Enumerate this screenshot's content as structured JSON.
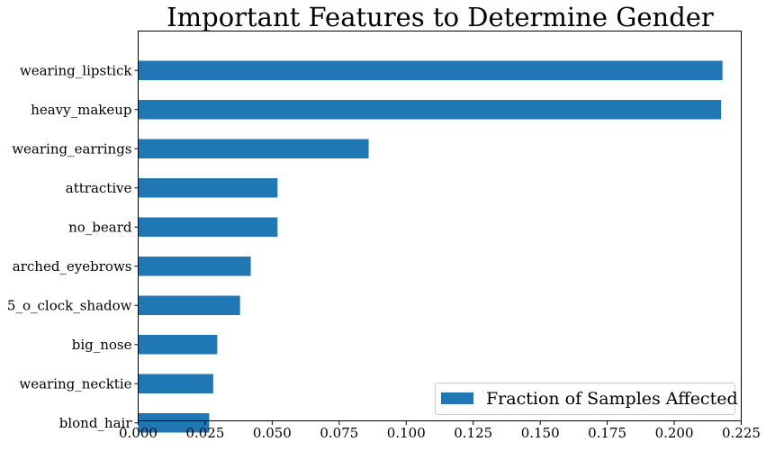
{
  "chart_data": {
    "type": "bar",
    "orientation": "horizontal",
    "title": "Important Features to Determine Gender",
    "xlabel": "",
    "ylabel": "",
    "categories": [
      "wearing_lipstick",
      "heavy_makeup",
      "wearing_earrings",
      "attractive",
      "no_beard",
      "arched_eyebrows",
      "5_o_clock_shadow",
      "big_nose",
      "wearing_necktie",
      "blond_hair"
    ],
    "series": [
      {
        "name": "Fraction of Samples Affected",
        "values": [
          0.218,
          0.2175,
          0.086,
          0.052,
          0.052,
          0.042,
          0.038,
          0.0295,
          0.028,
          0.0265
        ],
        "color": "#1f77b4"
      }
    ],
    "xlim": [
      0,
      0.225
    ],
    "xticks": [
      "0.000",
      "0.025",
      "0.050",
      "0.075",
      "0.100",
      "0.125",
      "0.150",
      "0.175",
      "0.200",
      "0.225"
    ],
    "grid": false,
    "legend_position": "lower-right"
  }
}
